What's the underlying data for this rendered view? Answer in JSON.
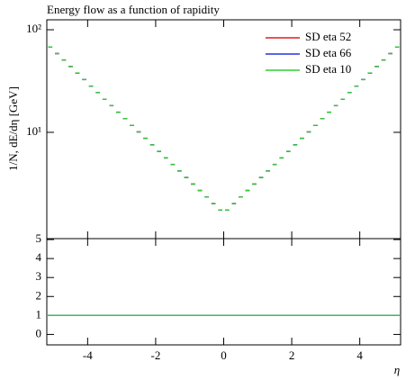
{
  "chart_data": [
    {
      "type": "histogram",
      "title": "Energy flow as a function of rapidity",
      "ylabel": "1/N, dE/dη [GeV]",
      "bins": [
        -5.2,
        -5.0,
        -4.8,
        -4.6,
        -4.4,
        -4.2,
        -4.0,
        -3.8,
        -3.6,
        -3.4,
        -3.2,
        -3.0,
        -2.8,
        -2.6,
        -2.4,
        -2.2,
        -2.0,
        -1.8,
        -1.6,
        -1.4,
        -1.2,
        -1.0,
        -0.8,
        -0.6,
        -0.4,
        -0.2,
        0.0,
        0.2,
        0.4,
        0.6,
        0.8,
        1.0,
        1.2,
        1.4,
        1.6,
        1.8,
        2.0,
        2.2,
        2.4,
        2.6,
        2.8,
        3.0,
        3.2,
        3.4,
        3.6,
        3.8,
        4.0,
        4.2,
        4.4,
        4.6,
        4.8,
        5.0,
        5.2
      ],
      "series": [
        {
          "name": "SD eta 52",
          "color": "#e41a1c",
          "values": [
            67.9,
            58.6,
            50.7,
            43.8,
            37.8,
            32.7,
            28.2,
            24.4,
            21.0,
            18.2,
            15.7,
            13.6,
            11.7,
            10.1,
            8.74,
            7.55,
            6.52,
            5.63,
            4.86,
            4.2,
            3.63,
            3.13,
            2.71,
            2.34,
            2.02,
            1.745,
            1.745,
            2.02,
            2.34,
            2.71,
            3.13,
            3.63,
            4.2,
            4.86,
            5.63,
            6.52,
            7.55,
            8.74,
            10.1,
            11.7,
            13.6,
            15.7,
            18.2,
            21.0,
            24.4,
            28.2,
            32.7,
            37.8,
            43.8,
            50.7,
            58.6,
            67.9
          ]
        },
        {
          "name": "SD eta 66",
          "color": "#2233dd",
          "values": [
            67.9,
            58.6,
            50.7,
            43.8,
            37.8,
            32.7,
            28.2,
            24.4,
            21.0,
            18.2,
            15.7,
            13.6,
            11.7,
            10.1,
            8.74,
            7.55,
            6.52,
            5.63,
            4.86,
            4.2,
            3.63,
            3.13,
            2.71,
            2.34,
            2.02,
            1.745,
            1.745,
            2.02,
            2.34,
            2.71,
            3.13,
            3.63,
            4.2,
            4.86,
            5.63,
            6.52,
            7.55,
            8.74,
            10.1,
            11.7,
            13.6,
            15.7,
            18.2,
            21.0,
            24.4,
            28.2,
            32.7,
            37.8,
            43.8,
            50.7,
            58.6,
            67.9
          ]
        },
        {
          "name": "SD eta 10",
          "color": "#33cc33",
          "values": [
            67.9,
            58.6,
            50.7,
            43.8,
            37.8,
            32.7,
            28.2,
            24.4,
            21.0,
            18.2,
            15.7,
            13.6,
            11.7,
            10.1,
            8.74,
            7.55,
            6.52,
            5.63,
            4.86,
            4.2,
            3.63,
            3.13,
            2.71,
            2.34,
            2.02,
            1.745,
            1.745,
            2.02,
            2.34,
            2.71,
            3.13,
            3.63,
            4.2,
            4.86,
            5.63,
            6.52,
            7.55,
            8.74,
            10.1,
            11.7,
            13.6,
            15.7,
            18.2,
            21.0,
            24.4,
            28.2,
            32.7,
            37.8,
            43.8,
            50.7,
            58.6,
            67.9
          ]
        }
      ],
      "xlim": [
        -5.2,
        5.2
      ],
      "ylim": [
        0.92,
        125
      ],
      "log_y": true,
      "yticks": [
        {
          "value": 10,
          "label": "10¹"
        },
        {
          "value": 100,
          "label": "10²"
        }
      ],
      "legend": "top right"
    },
    {
      "type": "line",
      "xlabel": "η",
      "x": [
        -5.2,
        5.2
      ],
      "series": [
        {
          "name": "SD eta 52",
          "color": "#e41a1c",
          "values": [
            1,
            1
          ]
        },
        {
          "name": "SD eta 66",
          "color": "#2233dd",
          "values": [
            1,
            1
          ]
        },
        {
          "name": "SD eta 10",
          "color": "#33cc33",
          "values": [
            1,
            1
          ]
        }
      ],
      "xlim": [
        -5.2,
        5.2
      ],
      "ylim": [
        -0.55,
        5.05
      ],
      "xticks": [
        -4,
        -2,
        0,
        2,
        4
      ],
      "yticks": [
        0,
        1,
        2,
        3,
        4,
        5
      ]
    }
  ]
}
